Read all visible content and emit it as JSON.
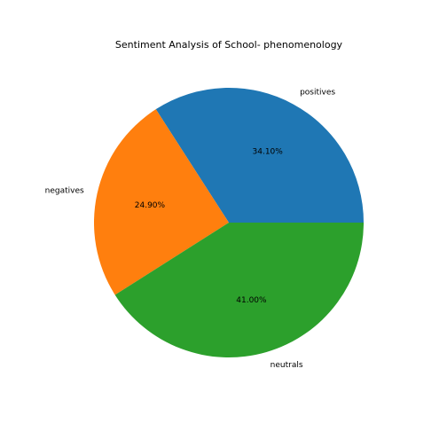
{
  "chart_data": {
    "type": "pie",
    "title": "Sentiment Analysis of School- phenomenology",
    "slices": [
      {
        "label": "positives",
        "value": 34.1,
        "pct_text": "34.10%",
        "color": "#1f77b4"
      },
      {
        "label": "negatives",
        "value": 24.9,
        "pct_text": "24.90%",
        "color": "#ff7f0e"
      },
      {
        "label": "neutrals",
        "value": 41.0,
        "pct_text": "41.00%",
        "color": "#2ca02c"
      }
    ],
    "start_angle_deg": 0,
    "direction": "counterclockwise",
    "legend": "none"
  }
}
